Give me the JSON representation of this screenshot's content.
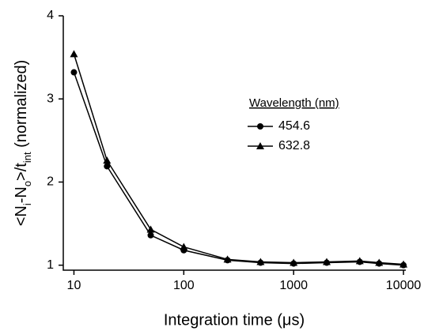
{
  "chart_data": {
    "type": "line",
    "xlabel": "Integration time (μs)",
    "ylabel": [
      "<N",
      "i",
      "-N",
      "o",
      ">/t",
      "int",
      " (normalized)"
    ],
    "legend_title": "Wavelength (nm)",
    "x": [
      10,
      20,
      50,
      100,
      250,
      500,
      1000,
      2000,
      4000,
      6000,
      10000
    ],
    "series": [
      {
        "name": "454.6",
        "color": "#000000",
        "marker": "circle",
        "values": [
          3.32,
          2.19,
          1.36,
          1.18,
          1.06,
          1.03,
          1.02,
          1.03,
          1.04,
          1.02,
          1.0
        ]
      },
      {
        "name": "632.8",
        "color": "#000000",
        "marker": "triangle",
        "values": [
          3.54,
          2.26,
          1.43,
          1.22,
          1.07,
          1.04,
          1.03,
          1.04,
          1.05,
          1.03,
          1.01
        ]
      }
    ],
    "xlog": true,
    "xlim": [
      8,
      10500
    ],
    "xticks": [
      10,
      100,
      1000,
      10000
    ],
    "ylim": [
      0.94,
      4
    ],
    "yticks": [
      1,
      2,
      3,
      4
    ],
    "grid": false
  }
}
